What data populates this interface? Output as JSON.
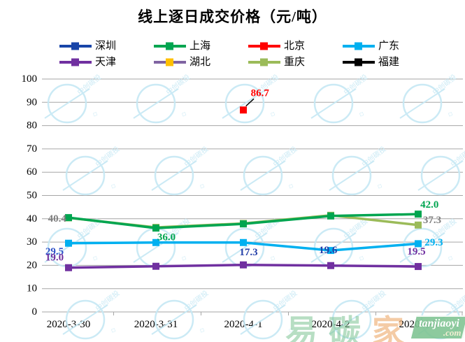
{
  "title": "线上逐日成交价格（元/吨）",
  "legend": [
    {
      "label": "深圳",
      "line": "#1845A8",
      "marker": "#1845A8"
    },
    {
      "label": "上海",
      "line": "#00A550",
      "marker": "#00A550"
    },
    {
      "label": "北京",
      "line": "#FF0000",
      "marker": "#FF0000"
    },
    {
      "label": "广东",
      "line": "#00B0F0",
      "marker": "#00B0F0"
    },
    {
      "label": "天津",
      "line": "#7030A0",
      "marker": "#7030A0"
    },
    {
      "label": "湖北",
      "line": "#8064A2",
      "marker": "#FFC000"
    },
    {
      "label": "重庆",
      "line": "#9BBB59",
      "marker": "#9BBB59"
    },
    {
      "label": "福建",
      "line": "#000000",
      "marker": "#000000"
    }
  ],
  "chart_data": {
    "type": "line",
    "title": "线上逐日成交价格（元/吨）",
    "categories": [
      "2020-3-30",
      "2020-3-31",
      "2020-4-1",
      "2020-4-2",
      "2020-4-3"
    ],
    "y_axis": {
      "min": 0,
      "max": 100,
      "step": 10
    },
    "grid": "horizontal",
    "legend_position": "top",
    "series": [
      {
        "name": "深圳",
        "color": "#1845A8",
        "marker": "#1845A8",
        "line_hidden": true,
        "values": [
          null,
          null,
          17.3,
          19.6,
          null
        ]
      },
      {
        "name": "上海",
        "color": "#00A550",
        "marker": "#00A550",
        "values": [
          40.5,
          36.0,
          37.8,
          41.2,
          42.0
        ]
      },
      {
        "name": "北京",
        "color": "#FF0000",
        "marker": "#FF0000",
        "values": [
          null,
          null,
          86.7,
          null,
          null
        ]
      },
      {
        "name": "广东",
        "color": "#00B0F0",
        "marker": "#00B0F0",
        "values": [
          29.5,
          29.8,
          29.8,
          26.4,
          29.3
        ]
      },
      {
        "name": "天津",
        "color": "#7030A0",
        "marker": "#7030A0",
        "values": [
          19.0,
          19.6,
          20.2,
          19.9,
          19.5
        ]
      },
      {
        "name": "湖北",
        "color": "#8064A2",
        "marker": "#FFC000",
        "values": [
          null,
          null,
          null,
          null,
          null
        ]
      },
      {
        "name": "重庆",
        "color": "#9BBB59",
        "marker": "#9BBB59",
        "values": [
          40.4,
          36.3,
          38.0,
          41.5,
          37.3
        ]
      },
      {
        "name": "福建",
        "color": "#000000",
        "marker": "#000000",
        "values": [
          null,
          null,
          null,
          null,
          null
        ]
      }
    ],
    "labels": [
      {
        "text": "40.4",
        "xi": -0.13,
        "v": 39.9,
        "color": "#7F7F7F"
      },
      {
        "text": "29.5",
        "xi": -0.16,
        "v": 25.9,
        "color": "#2E50C8"
      },
      {
        "text": "19.0",
        "xi": -0.16,
        "v": 23.2,
        "color": "#7030A0"
      },
      {
        "text": "36.0",
        "xi": 1.12,
        "v": 32.0,
        "color": "#00A550"
      },
      {
        "text": "86.7",
        "xi": 2.19,
        "v": 93.9,
        "color": "#FF0000"
      },
      {
        "text": "17.3",
        "xi": 2.06,
        "v": 25.5,
        "color": "#243FA8"
      },
      {
        "text": "19.6",
        "xi": 2.97,
        "v": 26.5,
        "color": "#243FA8"
      },
      {
        "text": "42.0",
        "xi": 4.13,
        "v": 45.9,
        "color": "#00A550"
      },
      {
        "text": "37.3",
        "xi": 4.16,
        "v": 39.3,
        "color": "#7F7F7F"
      },
      {
        "text": "29.3",
        "xi": 4.18,
        "v": 29.7,
        "color": "#00B0F0"
      },
      {
        "text": "19.5",
        "xi": 3.98,
        "v": 25.8,
        "color": "#7030A0"
      }
    ],
    "leader_line": {
      "x1": 2.12,
      "v1": 91.5,
      "x2": 2.03,
      "v2": 88.4
    }
  },
  "watermark": {
    "text": "中创碳投",
    "color": "#C6E8F4"
  },
  "logo": {
    "chars": [
      {
        "t": "易",
        "c": "#7CC493"
      },
      {
        "t": "碳",
        "c": "#7CC493"
      },
      {
        "t": "家",
        "c": "#ECA05C"
      }
    ],
    "site": "tanjiaoyi",
    "tld": ".com"
  }
}
